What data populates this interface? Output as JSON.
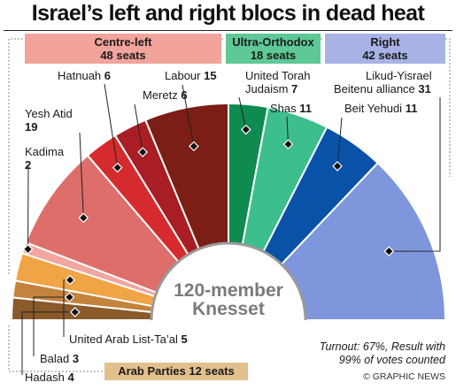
{
  "chart_data": {
    "type": "pie",
    "subtype": "semicircle-parliament",
    "title": "Israel’s left and right blocs in dead heat",
    "total_label_line1": "120-member",
    "total_label_line2": "Knesset",
    "slices": [
      {
        "name": "Hadash",
        "value": 4,
        "color": "#8a5a2b"
      },
      {
        "name": "Balad",
        "value": 3,
        "color": "#c4833c"
      },
      {
        "name": "United Arab List-Ta’al",
        "value": 5,
        "color": "#f0a446"
      },
      {
        "name": "Kadima",
        "value": 2,
        "color": "#f1a6a0"
      },
      {
        "name": "Yesh Atid",
        "value": 19,
        "color": "#dd6e6a"
      },
      {
        "name": "Hatnuah",
        "value": 6,
        "color": "#d52b2e"
      },
      {
        "name": "Meretz",
        "value": 6,
        "color": "#a81e24"
      },
      {
        "name": "Labour",
        "value": 15,
        "color": "#7c1e16"
      },
      {
        "name": "United Torah Judaism",
        "value": 7,
        "color": "#0f8a51"
      },
      {
        "name": "Shas",
        "value": 11,
        "color": "#3cbf8d"
      },
      {
        "name": "Beit Yehudi",
        "value": 11,
        "color": "#0a52a8"
      },
      {
        "name": "Likud-Yisrael Beitenu alliance",
        "value": 31,
        "color": "#7e96db"
      }
    ],
    "blocs": [
      {
        "name": "Centre-left",
        "seats_label": "48 seats",
        "color": "#f2a39b"
      },
      {
        "name": "Ultra-Orthodox",
        "seats_label": "18 seats",
        "color": "#5ec896"
      },
      {
        "name": "Right",
        "seats_label": "42 seats",
        "color": "#a8b2e4"
      },
      {
        "name": "Arab Parties",
        "seats_label": "12 seats",
        "label": "Arab Parties 12 seats",
        "color": "#e2c08e"
      }
    ]
  },
  "labels": {
    "hadash_name": "Hadash",
    "hadash_value": "4",
    "balad_name": "Balad",
    "balad_value": "3",
    "ual_name": "United Arab List-Ta’al",
    "ual_value": "5",
    "kadima_name": "Kadima",
    "kadima_value": "2",
    "yesh_name": "Yesh Atid",
    "yesh_value": "19",
    "hatnuah_name": "Hatnuah",
    "hatnuah_value": "6",
    "meretz_name": "Meretz",
    "meretz_value": "6",
    "labour_name": "Labour",
    "labour_value": "15",
    "utj_name_1": "United Torah",
    "utj_name_2": "Judaism",
    "utj_value": "7",
    "shas_name": "Shas",
    "shas_value": "11",
    "likud_name_1": "Likud-Yisrael",
    "likud_name_2": "Beitenu alliance",
    "likud_value": "31",
    "beit_name": "Beit Yehudi",
    "beit_value": "11"
  },
  "notes": {
    "turnout_line1": "Turnout: 67%, Result with",
    "turnout_line2": "99% of votes counted",
    "credit": "© GRAPHIC NEWS"
  }
}
